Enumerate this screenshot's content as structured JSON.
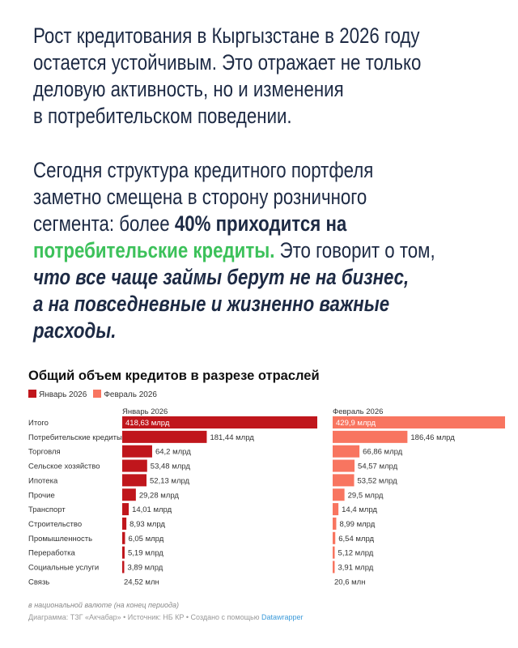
{
  "intro": {
    "paragraph1": [
      [
        {
          "t": "Рост кредитования в Кыргызстане в 2026 году",
          "s": ""
        }
      ],
      [
        {
          "t": "остается устойчивым. Это отражает не только",
          "s": ""
        }
      ],
      [
        {
          "t": "деловую активность, но и изменения",
          "s": ""
        }
      ],
      [
        {
          "t": "в потребительском поведении.",
          "s": ""
        }
      ]
    ],
    "paragraph2": [
      [
        {
          "t": "Сегодня структура кредитного портфеля",
          "s": ""
        }
      ],
      [
        {
          "t": "заметно смещена в сторону розничного",
          "s": ""
        }
      ],
      [
        {
          "t": "сегмента: более ",
          "s": ""
        },
        {
          "t": "40% приходится на",
          "s": "b"
        }
      ],
      [
        {
          "t": "потребительские кредиты.",
          "s": "g"
        },
        {
          "t": " Это говорит о том,",
          "s": ""
        }
      ],
      [
        {
          "t": "что все чаще займы берут не на бизнес,",
          "s": "bi"
        }
      ],
      [
        {
          "t": "а на повседневные и жизненно важные",
          "s": "bi"
        }
      ],
      [
        {
          "t": "расходы.",
          "s": "bi"
        }
      ]
    ]
  },
  "colors": {
    "text": "#1d2a44",
    "highlight": "#3cc15a",
    "jan": "#c0161c",
    "feb": "#f87560"
  },
  "chart_data": {
    "type": "bar",
    "title": "Общий объем кредитов в разрезе отраслей",
    "legend": [
      "Январь 2026",
      "Февраль 2026"
    ],
    "legend_position": "top-left",
    "categories": [
      "Итого",
      "Потребительские кредиты",
      "Торговля",
      "Сельское хозяйство",
      "Ипотека",
      "Прочие",
      "Транспорт",
      "Строительство",
      "Промышленность",
      "Переработка",
      "Социальные услуги",
      "Связь"
    ],
    "series": [
      {
        "name": "Январь 2026",
        "unit": "млрд сом",
        "values": [
          418.63,
          181.44,
          64.2,
          53.48,
          52.13,
          29.28,
          14.01,
          8.93,
          6.05,
          5.19,
          3.89,
          0.02452
        ],
        "labels": [
          "418,63 млрд",
          "181,44 млрд",
          "64,2 млрд",
          "53,48 млрд",
          "52,13 млрд",
          "29,28 млрд",
          "14,01 млрд",
          "8,93 млрд",
          "6,05 млрд",
          "5,19 млрд",
          "3,89 млрд",
          "24,52 млн"
        ]
      },
      {
        "name": "Февраль 2026",
        "unit": "млрд сом",
        "values": [
          429.9,
          186.46,
          66.86,
          54.57,
          53.52,
          29.5,
          14.4,
          8.99,
          6.54,
          5.12,
          3.91,
          0.0206
        ],
        "labels": [
          "429,9 млрд",
          "186,46 млрд",
          "66,86 млрд",
          "54,57 млрд",
          "53,52 млрд",
          "29,5 млрд",
          "14,4 млрд",
          "8,99 млрд",
          "6,54 млрд",
          "5,12 млрд",
          "3,91 млрд",
          "20,6 млн"
        ]
      }
    ],
    "note": "в национальной валюте (на конец периода)",
    "credit": "Диаграмма: ТЗГ «Акчабар» • Источник: НБ КР • Создано с помощью ",
    "credit_link": "Datawrapper"
  }
}
